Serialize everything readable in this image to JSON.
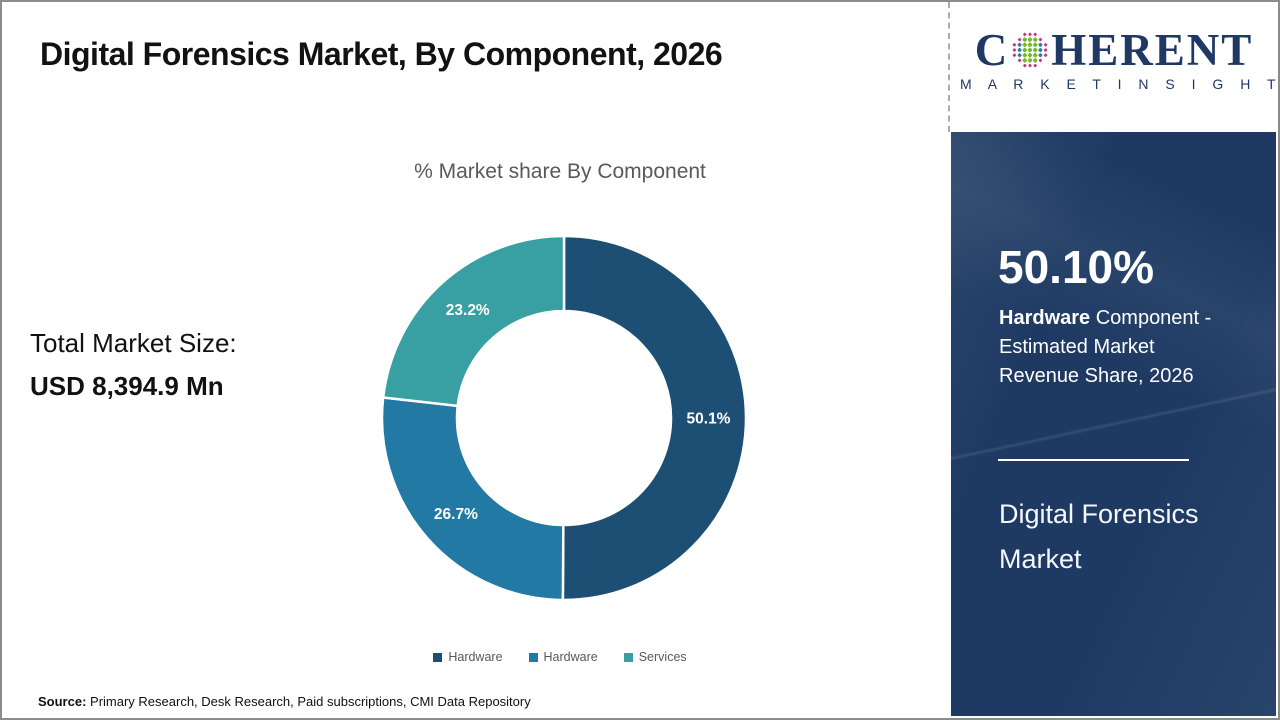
{
  "page": {
    "title": "Digital Forensics Market, By Component, 2026",
    "source_label": "Source:",
    "source_text": " Primary Research, Desk Research, Paid subscriptions, CMI Data Repository",
    "border_color": "#8c8c8c"
  },
  "logo": {
    "brand_prefix": "C",
    "brand_suffix": "HERENT",
    "subtitle": "M A R K E T   I N S I G H T S",
    "color": "#1f3864",
    "globe_icon_colors": {
      "center": "#76b82a",
      "mid": "#2e7ca6",
      "outer": "#c23a80"
    }
  },
  "left_panel": {
    "total_label": "Total Market Size:",
    "total_value": "USD 8,394.9 Mn"
  },
  "chart_data": {
    "type": "pie",
    "donut": true,
    "title": "% Market share By Component",
    "start_angle_deg": 0,
    "inner_ratio": 0.588,
    "legend_position": "bottom",
    "series": [
      {
        "name": "Hardware",
        "value": 50.1,
        "label": "50.1%",
        "color": "#1d4f74"
      },
      {
        "name": "Hardware",
        "value": 26.7,
        "label": "26.7%",
        "color": "#2279a4"
      },
      {
        "name": "Services",
        "value": 23.2,
        "label": "23.2%",
        "color": "#38a0a2"
      }
    ]
  },
  "sidebar": {
    "background_color": "#1e3a63",
    "headline_value": "50.10%",
    "desc_bold": "Hardware",
    "desc_rest": " Component - Estimated Market Revenue Share, 2026",
    "footer_title": "Digital Forensics Market"
  }
}
